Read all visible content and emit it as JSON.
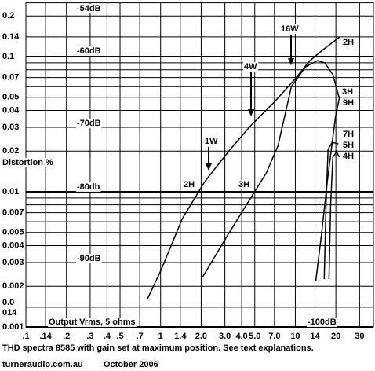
{
  "chart_data": {
    "type": "line",
    "log_x": true,
    "log_y": true,
    "grid": true,
    "xlim": [
      0.1,
      38
    ],
    "ylim": [
      0.001,
      0.25
    ],
    "xticks": [
      {
        "value": 0.1,
        "label": ".1"
      },
      {
        "value": 0.14,
        "label": ".14"
      },
      {
        "value": 0.2,
        "label": ".2"
      },
      {
        "value": 0.3,
        "label": ".3"
      },
      {
        "value": 0.4,
        "label": ".4"
      },
      {
        "value": 0.5,
        "label": ".5"
      },
      {
        "value": 0.7,
        "label": ".7"
      },
      1,
      1.4,
      {
        "value": 2,
        "label": "2.0"
      },
      {
        "value": 3,
        "label": "3.0"
      },
      {
        "value": 4,
        "label": "4.0"
      },
      {
        "value": 5,
        "label": "5.0"
      },
      {
        "value": 7,
        "label": "7.0"
      },
      10,
      14,
      20,
      30
    ],
    "yticks": [
      0.2,
      0.14,
      0.1,
      0.07,
      0.05,
      0.04,
      0.03,
      0.02,
      0.01,
      0.007,
      0.005,
      0.004,
      0.003,
      0.002,
      {
        "value": 0.0014,
        "label": "0.0\n014"
      },
      0.001
    ],
    "y_minor_grid": [
      0.09,
      0.08,
      0.06,
      0.009,
      0.008,
      0.006
    ],
    "color": "#000000",
    "series": [
      {
        "name": "2H",
        "x": [
          0.8,
          1.0,
          1.45,
          2.14,
          3.29,
          4.66,
          6.97,
          10,
          12.7,
          15.6,
          21.4
        ],
        "values": [
          0.00162,
          0.00259,
          0.00634,
          0.012,
          0.0206,
          0.0308,
          0.046,
          0.0687,
          0.0923,
          0.11,
          0.14
        ]
      },
      {
        "name": "3H",
        "x": [
          2.06,
          3.12,
          4.36,
          6.09,
          7.45,
          9.35,
          11.9,
          14.6,
          16.6,
          19.0,
          21.2,
          19.8,
          17.3,
          15.6,
          14.2
        ],
        "values": [
          0.00236,
          0.00472,
          0.00807,
          0.0138,
          0.022,
          0.0601,
          0.084,
          0.0935,
          0.0899,
          0.0735,
          0.0492,
          0.0352,
          0.012,
          0.00472,
          0.0022
        ]
      },
      {
        "name": "5H",
        "x": [
          16.4,
          16.9,
          17.5,
          18.8,
          20.9
        ],
        "values": [
          0.00226,
          0.00807,
          0.0206,
          0.0232,
          0.0226
        ]
      },
      {
        "name": "4H",
        "x": [
          17.8,
          18.3,
          19.0,
          20.3,
          21.2
        ],
        "values": [
          0.00226,
          0.00807,
          0.018,
          0.0198,
          0.018
        ]
      }
    ],
    "annotations": [
      "-54dB",
      "-60dB",
      "-70dB",
      "-80db",
      "-90dB",
      "-100dB",
      "16W",
      "4W",
      "1W",
      "9H",
      "7H",
      "2H",
      "3H",
      "Distortion %",
      "Output Vrms, 5 ohms"
    ],
    "caption": "THD spectra 8585 with gain set at maximum position. See text explanations.",
    "source": "turneraudio.com.au",
    "date": "October 2006"
  }
}
